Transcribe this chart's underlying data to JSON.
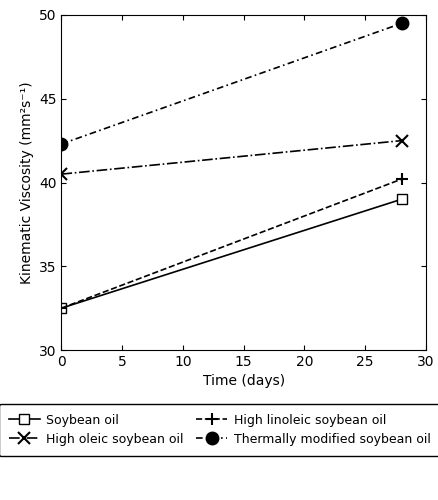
{
  "title": "",
  "xlabel": "Time (days)",
  "ylabel": "Kinematic Viscosity (mm²s⁻¹)",
  "xlim": [
    0,
    30
  ],
  "ylim": [
    30,
    50
  ],
  "xticks": [
    0,
    5,
    10,
    15,
    20,
    25,
    30
  ],
  "yticks": [
    30,
    35,
    40,
    45,
    50
  ],
  "series": [
    {
      "label": "Soybean oil",
      "x": [
        0,
        28
      ],
      "y": [
        32.5,
        39.0
      ],
      "linestyle": "solid",
      "linewidth": 1.2,
      "marker": "s",
      "markersize": 7,
      "markerfacecolor": "white",
      "markeredgecolor": "black",
      "color": "black"
    },
    {
      "label": "High linoleic soybean oil",
      "x": [
        0,
        28
      ],
      "y": [
        32.5,
        40.2
      ],
      "linestyle": "dashed",
      "linewidth": 1.2,
      "marker": "+",
      "markersize": 9,
      "markerfacecolor": "black",
      "markeredgecolor": "black",
      "markeredgewidth": 1.5,
      "color": "black"
    },
    {
      "label": "High oleic soybean oil",
      "x": [
        0,
        28
      ],
      "y": [
        40.5,
        42.5
      ],
      "linestyle": "dashdot",
      "linewidth": 1.2,
      "marker": "x",
      "markersize": 9,
      "markerfacecolor": "black",
      "markeredgecolor": "black",
      "markeredgewidth": 1.5,
      "color": "black"
    },
    {
      "label": "Thermally modified soybean oil",
      "x": [
        0,
        28
      ],
      "y": [
        42.3,
        49.5
      ],
      "linestyle": "dashed",
      "linewidth": 1.2,
      "marker": "o",
      "markersize": 9,
      "markerfacecolor": "black",
      "markeredgecolor": "black",
      "color": "black",
      "dashes": [
        4,
        2,
        1,
        2
      ]
    }
  ],
  "legend_order": [
    0,
    2,
    1,
    3
  ],
  "figsize": [
    4.39,
    5.0
  ],
  "dpi": 100
}
